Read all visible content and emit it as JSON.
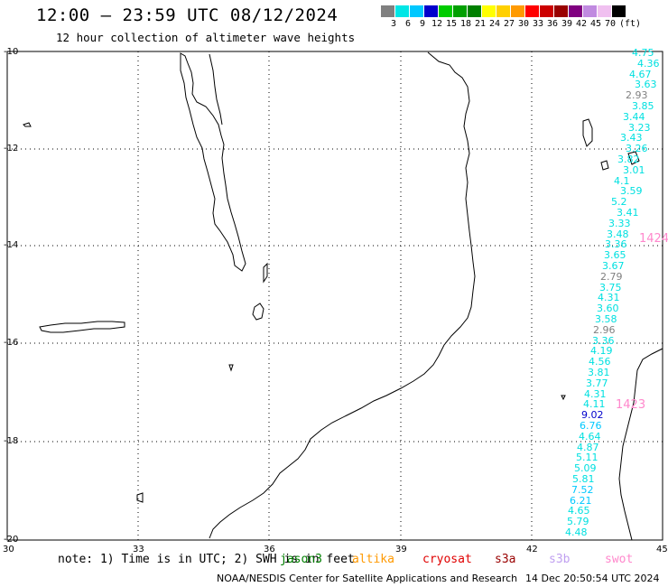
{
  "title": "12:00 – 23:59 UTC 08/12/2024",
  "subtitle": "12 hour collection of altimeter wave heights",
  "legend": {
    "colors": [
      "#808080",
      "#00e6e6",
      "#00c8ff",
      "#0000cc",
      "#00cc00",
      "#00a000",
      "#008000",
      "#ffff00",
      "#ffd000",
      "#ff9a00",
      "#ff0000",
      "#cc0000",
      "#990000",
      "#800080",
      "#c08ae0",
      "#f0c0f0",
      "#000000"
    ],
    "labels": [
      "3",
      "6",
      "9",
      "12",
      "15",
      "18",
      "21",
      "24",
      "27",
      "30",
      "33",
      "36",
      "39",
      "42",
      "45",
      "70",
      "(ft)"
    ]
  },
  "axes": {
    "lat_labels": [
      "-10",
      "-12",
      "-14",
      "-16",
      "-18",
      "-20"
    ],
    "lon_labels": [
      "30",
      "33",
      "36",
      "39",
      "42",
      "45"
    ]
  },
  "note": "note:  1) Time is in UTC;  2) SWH is in feet",
  "satellites": [
    {
      "name": "jason3",
      "color": "#008000"
    },
    {
      "name": "altika",
      "color": "#ff9900"
    },
    {
      "name": "cryosat",
      "color": "#e00000"
    },
    {
      "name": "s3a",
      "color": "#990000"
    },
    {
      "name": "s3b",
      "color": "#c0a0f0"
    },
    {
      "name": "swot",
      "color": "#ff88cc"
    }
  ],
  "footer": "NOAA/NESDIS Center for Satellite Applications and Research",
  "footer_time": "14 Dec 20:50:54 UTC 2024",
  "observations": [
    {
      "text": "4.75",
      "color": "#00e0e0"
    },
    {
      "text": "4.36",
      "color": "#00e0e0"
    },
    {
      "text": "4.67",
      "color": "#00e0e0"
    },
    {
      "text": "3.63",
      "color": "#00e0e0"
    },
    {
      "text": "2.93",
      "color": "#808080"
    },
    {
      "text": "3.85",
      "color": "#00e0e0"
    },
    {
      "text": "3.44",
      "color": "#00e0e0"
    },
    {
      "text": "3.23",
      "color": "#00e0e0"
    },
    {
      "text": "3.43",
      "color": "#00e0e0"
    },
    {
      "text": "3.26",
      "color": "#00e0e0"
    },
    {
      "text": "3.82",
      "color": "#00e0e0"
    },
    {
      "text": "3.01",
      "color": "#00e0e0"
    },
    {
      "text": "4.1",
      "color": "#00e0e0"
    },
    {
      "text": "3.59",
      "color": "#00e0e0"
    },
    {
      "text": "5.2",
      "color": "#00e0e0"
    },
    {
      "text": "3.41",
      "color": "#00e0e0"
    },
    {
      "text": "3.33",
      "color": "#00e0e0"
    },
    {
      "text": "3.48",
      "color": "#00e0e0"
    },
    {
      "text": "3.36",
      "color": "#00e0e0"
    },
    {
      "text": "3.65",
      "color": "#00e0e0"
    },
    {
      "text": "3.67",
      "color": "#00e0e0"
    },
    {
      "text": "2.79",
      "color": "#808080"
    },
    {
      "text": "3.75",
      "color": "#00e0e0"
    },
    {
      "text": "4.31",
      "color": "#00e0e0"
    },
    {
      "text": "3.60",
      "color": "#00e0e0"
    },
    {
      "text": "3.58",
      "color": "#00e0e0"
    },
    {
      "text": "2.96",
      "color": "#808080"
    },
    {
      "text": "3.36",
      "color": "#00e0e0"
    },
    {
      "text": "4.19",
      "color": "#00e0e0"
    },
    {
      "text": "4.56",
      "color": "#00e0e0"
    },
    {
      "text": "3.81",
      "color": "#00e0e0"
    },
    {
      "text": "3.77",
      "color": "#00e0e0"
    },
    {
      "text": "4.31",
      "color": "#00e0e0"
    },
    {
      "text": "4.11",
      "color": "#00e0e0"
    },
    {
      "text": "9.02",
      "color": "#0000cc"
    },
    {
      "text": "6.76",
      "color": "#00c8ff"
    },
    {
      "text": "4.64",
      "color": "#00e0e0"
    },
    {
      "text": "4.87",
      "color": "#00e0e0"
    },
    {
      "text": "5.11",
      "color": "#00e0e0"
    },
    {
      "text": "5.09",
      "color": "#00e0e0"
    },
    {
      "text": "5.81",
      "color": "#00e0e0"
    },
    {
      "text": "7.52",
      "color": "#00c8ff"
    },
    {
      "text": "6.21",
      "color": "#00c8ff"
    },
    {
      "text": "4.65",
      "color": "#00e0e0"
    },
    {
      "text": "5.79",
      "color": "#00e0e0"
    },
    {
      "text": "4.48",
      "color": "#00e0e0"
    }
  ],
  "pass_times": [
    "1424",
    "1423"
  ]
}
